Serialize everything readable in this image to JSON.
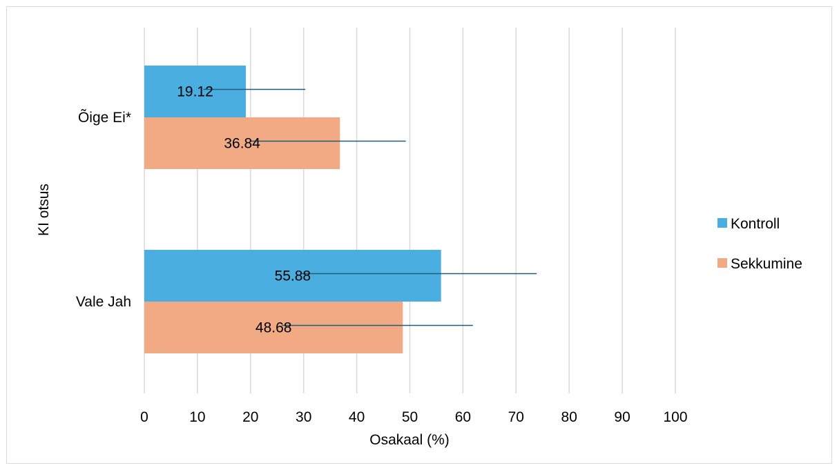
{
  "chart_data": {
    "type": "bar",
    "orientation": "horizontal",
    "categories": [
      "Õige Ei*",
      "Vale Jah"
    ],
    "series": [
      {
        "name": "Kontroll",
        "values": [
          19.12,
          55.88
        ],
        "error_plus": [
          11.2,
          18.0
        ],
        "color": "#4BAEE0"
      },
      {
        "name": "Sekkumine",
        "values": [
          36.84,
          48.68
        ],
        "error_plus": [
          12.4,
          13.2
        ],
        "color": "#F2AA84"
      }
    ],
    "data_labels": [
      [
        "19.12",
        "55.88"
      ],
      [
        "36.84",
        "48.68"
      ]
    ],
    "xlabel": "Osakaal (%)",
    "ylabel": "KI otsus",
    "xlim": [
      0,
      100
    ],
    "xticks": [
      "0",
      "10",
      "20",
      "30",
      "40",
      "50",
      "60",
      "70",
      "80",
      "90",
      "100"
    ],
    "grid": "vertical",
    "legend_position": "right",
    "error_bar_color": "#1F5C7A",
    "gridline_color": "#D9D9D9"
  }
}
